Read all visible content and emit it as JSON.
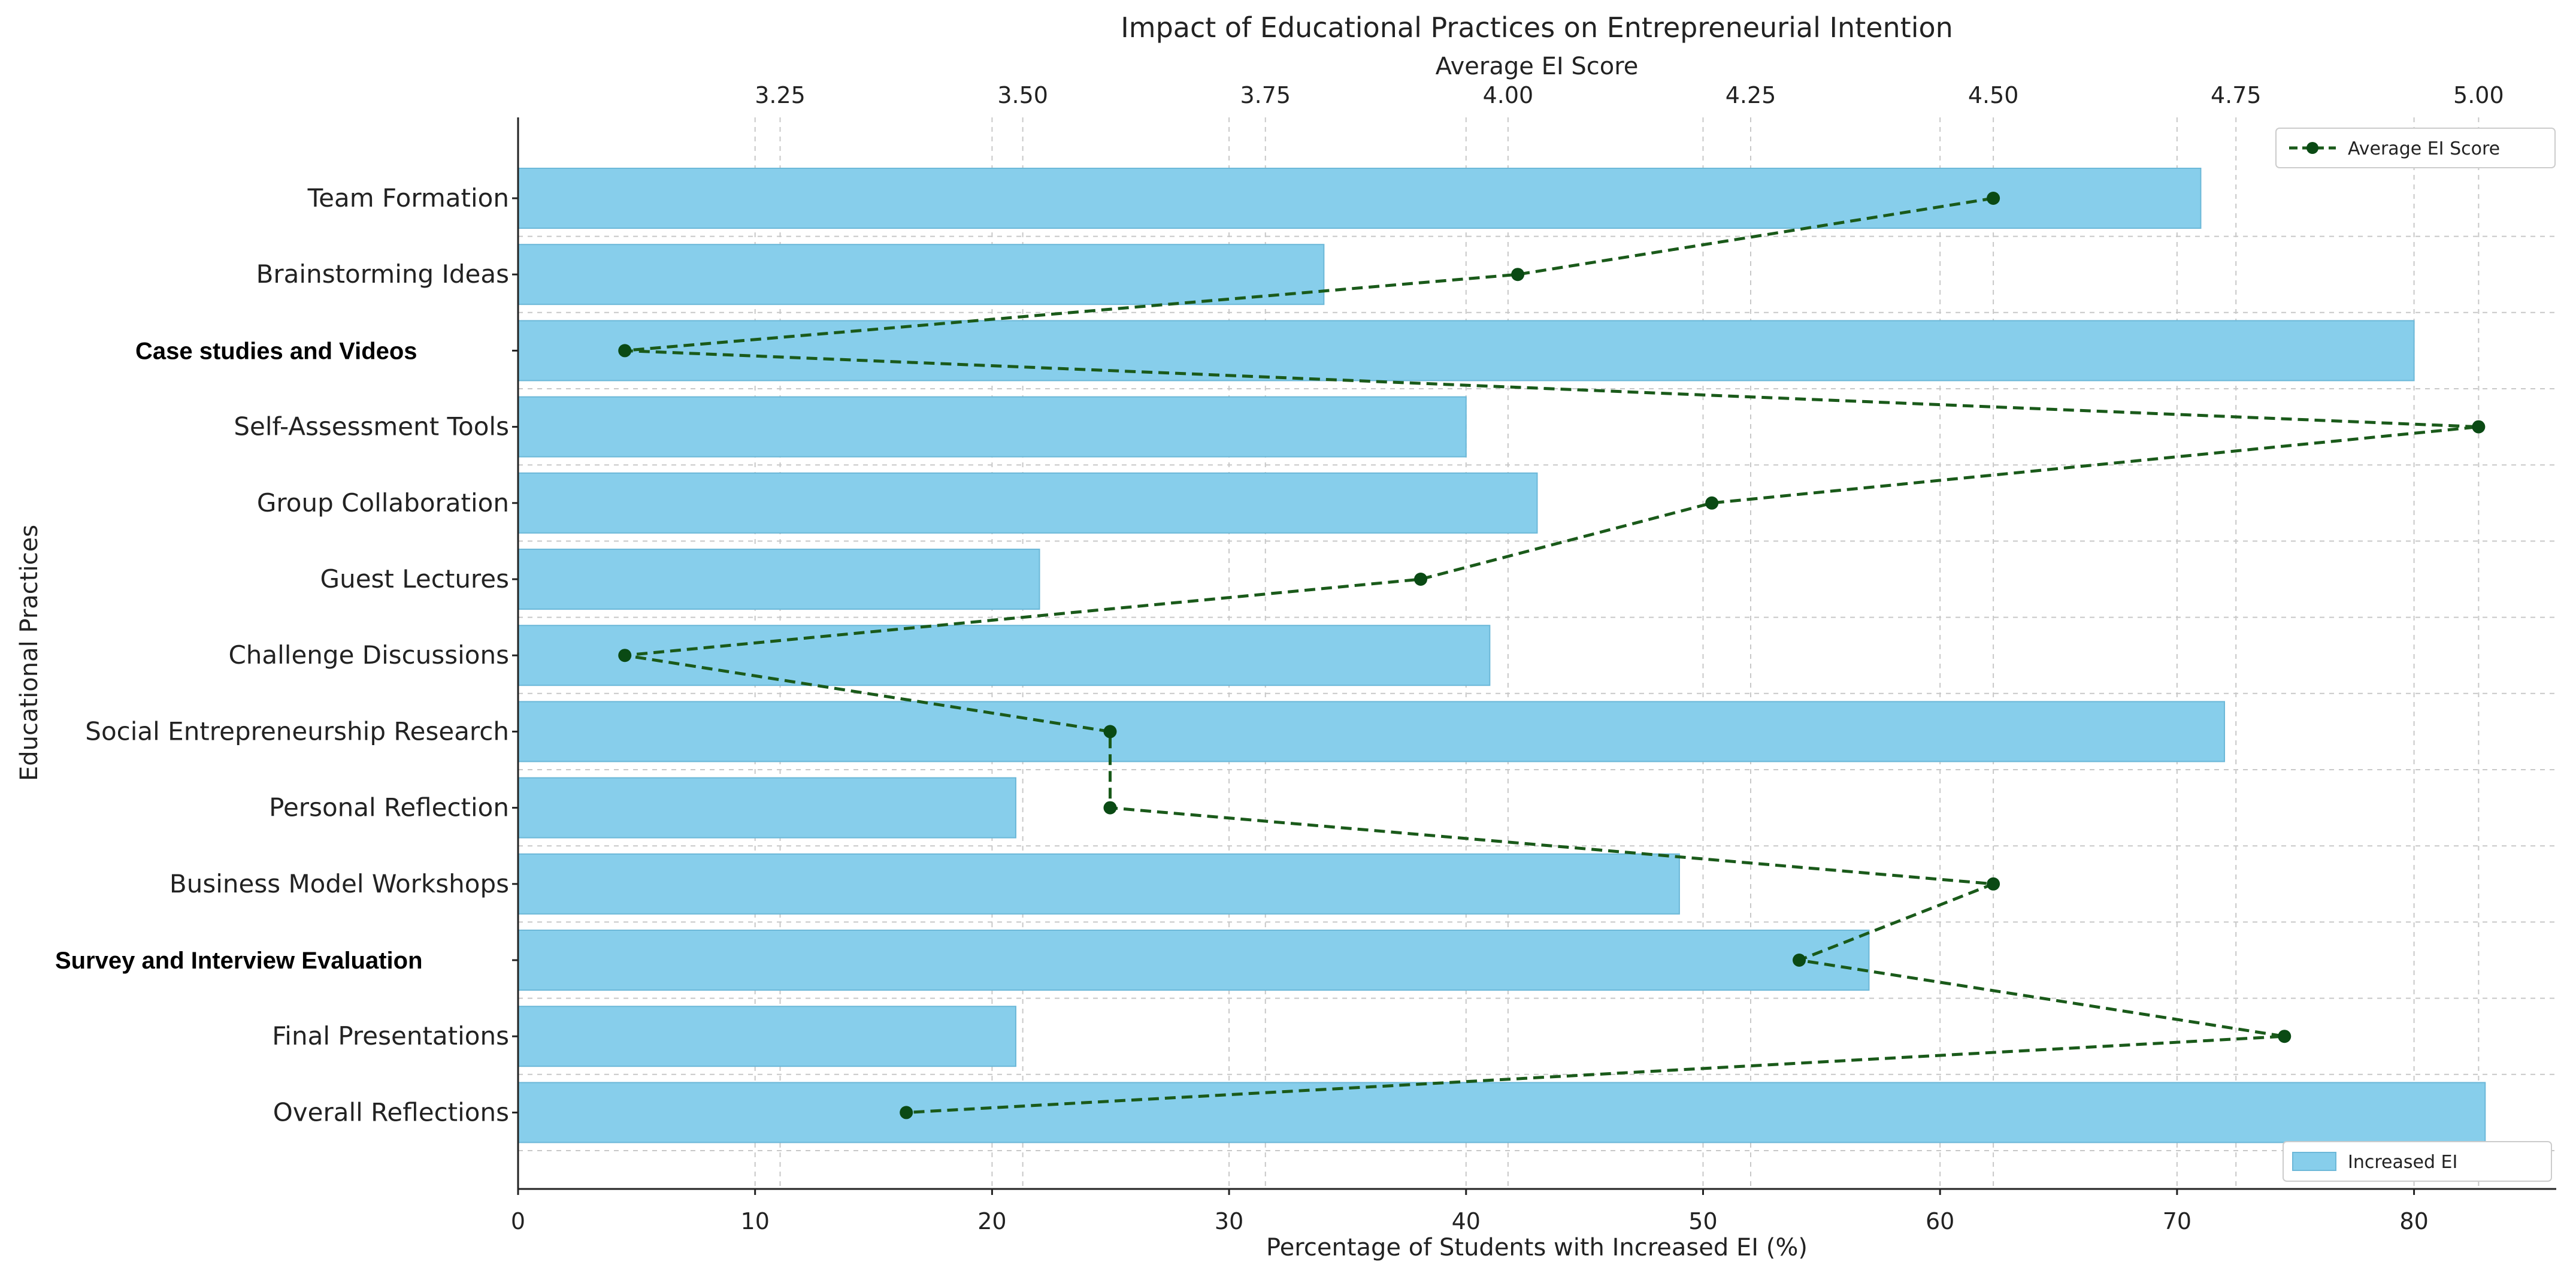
{
  "chart_data": {
    "type": "bar",
    "orientation": "horizontal",
    "title": "Impact of Educational Practices on Entrepreneurial Intention",
    "xlabel": "Percentage of Students with Increased EI (%)",
    "ylabel": "Educational Practices",
    "secondary_xlabel": "Average EI Score",
    "xlim": [
      0,
      86
    ],
    "secondary_xlim": [
      2.98,
      5.08
    ],
    "xticks": [
      0,
      10,
      20,
      30,
      40,
      50,
      60,
      70,
      80
    ],
    "secondary_xticks": [
      "3.25",
      "3.50",
      "3.75",
      "4.00",
      "4.25",
      "4.50",
      "4.75",
      "5.00"
    ],
    "grid": true,
    "categories": [
      "Team Formation",
      "Brainstorming Ideas",
      "Case studies and Videos",
      "Self-Assessment Tools",
      "Group Collaboration",
      "Guest Lectures",
      "Challenge Discussions",
      "Social Entrepreneurship Research",
      "Personal Reflection",
      "Business Model Workshops",
      "Survey and  Interview Evaluation",
      "Final Presentations",
      "Overall Reflections"
    ],
    "bold_categories": [
      "Case studies and Videos",
      "Survey and  Interview Evaluation"
    ],
    "series": [
      {
        "name": "Increased EI",
        "kind": "bar",
        "color": "#87ceeb",
        "values": [
          71,
          34,
          80,
          40,
          43,
          22,
          41,
          72,
          21,
          49,
          57,
          21,
          83
        ]
      },
      {
        "name": "Average EI Score",
        "kind": "line",
        "color": "#1a5a1a",
        "values": [
          4.5,
          4.01,
          3.09,
          5.0,
          4.21,
          3.91,
          3.09,
          3.59,
          3.59,
          4.5,
          4.3,
          4.8,
          3.38
        ]
      }
    ],
    "legend": [
      {
        "label": "Average EI Score",
        "placement": "top-right"
      },
      {
        "label": "Increased EI",
        "placement": "bottom-right"
      }
    ]
  }
}
